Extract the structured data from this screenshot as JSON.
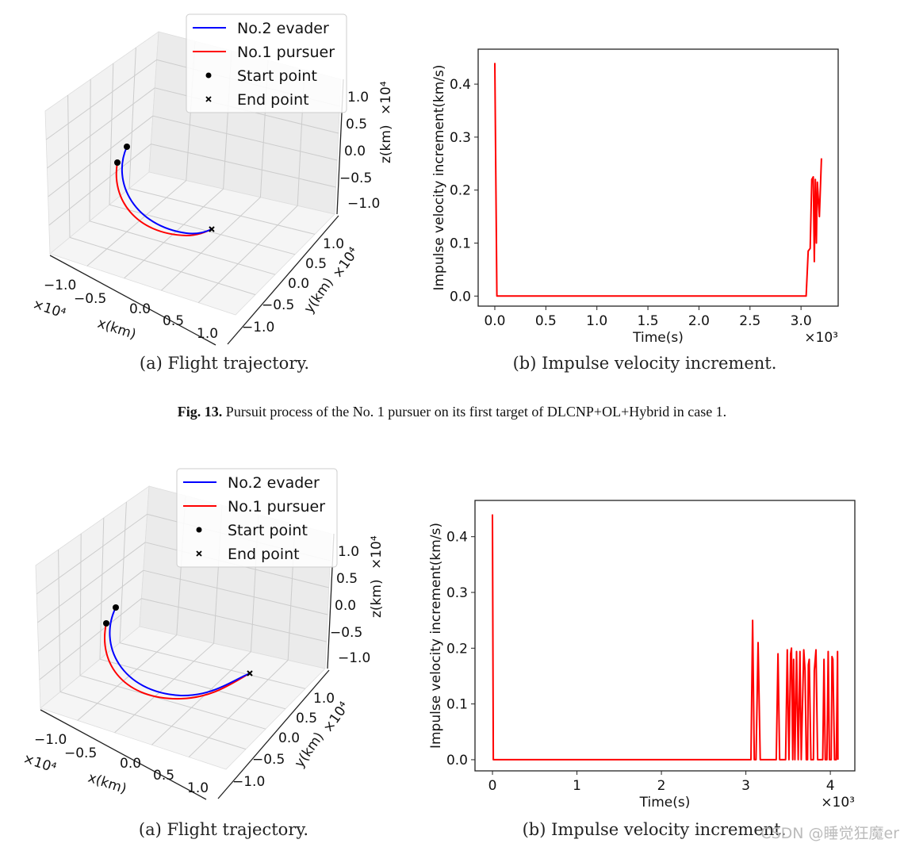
{
  "figure": {
    "top_caption_a": "(a) Flight trajectory.",
    "top_caption_b": "(b) Impulse velocity increment.",
    "fig_label": "Fig. 13.",
    "fig_text": "Pursuit process of the No. 1 pursuer on its first target of DLCNP+OL+Hybrid in case 1.",
    "bottom_caption_a": "(a) Flight trajectory.",
    "bottom_caption_b": "(b) Impulse velocity increment.",
    "watermark": "CSDN @睡觉狂魔er"
  },
  "chart_data": [
    {
      "type": "line3d",
      "legend": [
        "No.2 evader",
        "No.1 pursuer",
        "Start point",
        "End point"
      ],
      "legend_placement": "top-right",
      "colors": {
        "evader": "#0000ff",
        "pursuer": "#ff0000",
        "markers": "#000000"
      },
      "xlabel": "x(km)",
      "ylabel": "y(km)",
      "zlabel": "z(km)",
      "x_offset_label": "×10⁴",
      "y_offset_label": "×10⁴",
      "z_offset_label": "×10⁴",
      "xticks": [
        "−1.0",
        "−0.5",
        "0.0",
        "0.5",
        "1.0"
      ],
      "yticks": [
        "−1.0",
        "−0.5",
        "0.0",
        "0.5",
        "1.0"
      ],
      "zticks": [
        "−1.0",
        "−0.5",
        "0.0",
        "0.5",
        "1.0"
      ]
    },
    {
      "type": "line",
      "xlabel": "Time(s)",
      "ylabel": "Impulse velocity increment(km/s)",
      "x_offset_label": "×10³",
      "xlim": [
        -0.163,
        3.364
      ],
      "ylim": [
        -0.019,
        0.466
      ],
      "xticks": [
        0,
        0.5,
        1.0,
        1.5,
        2.0,
        2.5,
        3.0
      ],
      "xtick_labels": [
        "0.0",
        "0.5",
        "1.0",
        "1.5",
        "2.0",
        "2.5",
        "3.0"
      ],
      "yticks": [
        0,
        0.1,
        0.2,
        0.3,
        0.4
      ],
      "ytick_labels": [
        "0.0",
        "0.1",
        "0.2",
        "0.3",
        "0.4"
      ],
      "grid": false,
      "color": "#ff0000",
      "x": [
        0,
        0.02,
        3.05,
        3.07,
        3.09,
        3.105,
        3.12,
        3.13,
        3.14,
        3.15,
        3.16,
        3.18,
        3.2
      ],
      "y": [
        0.44,
        0,
        0,
        0.085,
        0.09,
        0.22,
        0.225,
        0.065,
        0.22,
        0.1,
        0.215,
        0.15,
        0.26
      ]
    },
    {
      "type": "line3d",
      "legend": [
        "No.2 evader",
        "No.1 pursuer",
        "Start point",
        "End point"
      ],
      "legend_placement": "top-right",
      "colors": {
        "evader": "#0000ff",
        "pursuer": "#ff0000",
        "markers": "#000000"
      },
      "xlabel": "x(km)",
      "ylabel": "y(km)",
      "zlabel": "z(km)",
      "x_offset_label": "×10⁴",
      "y_offset_label": "×10⁴",
      "z_offset_label": "×10⁴",
      "xticks": [
        "−1.0",
        "−0.5",
        "0.0",
        "0.5",
        "1.0"
      ],
      "yticks": [
        "−1.0",
        "−0.5",
        "0.0",
        "0.5",
        "1.0"
      ],
      "zticks": [
        "−1.0",
        "−0.5",
        "0.0",
        "0.5",
        "1.0"
      ]
    },
    {
      "type": "line",
      "xlabel": "Time(s)",
      "ylabel": "Impulse velocity increment(km/s)",
      "x_offset_label": "×10³",
      "xlim": [
        -0.207,
        4.29
      ],
      "ylim": [
        -0.02,
        0.465
      ],
      "xticks": [
        0,
        1,
        2,
        3,
        4
      ],
      "xtick_labels": [
        "0",
        "1",
        "2",
        "3",
        "4"
      ],
      "yticks": [
        0,
        0.1,
        0.2,
        0.3,
        0.4
      ],
      "ytick_labels": [
        "0.0",
        "0.1",
        "0.2",
        "0.3",
        "0.4"
      ],
      "grid": false,
      "color": "#ff0000",
      "x": [
        0,
        0.01,
        3.06,
        3.08,
        3.1,
        3.12,
        3.145,
        3.17,
        3.36,
        3.38,
        3.4,
        3.47,
        3.49,
        3.51,
        3.53,
        3.54,
        3.555,
        3.565,
        3.58,
        3.6,
        3.62,
        3.64,
        3.655,
        3.685,
        3.7,
        3.715,
        3.73,
        3.74,
        3.75,
        3.77,
        3.8,
        3.81,
        3.83,
        3.85,
        3.91,
        3.925,
        3.94,
        3.96,
        3.975,
        3.99,
        4.01,
        4.02,
        4.03,
        4.05,
        4.07,
        4.085,
        4.09
      ],
      "y": [
        0.44,
        0,
        0,
        0.25,
        0,
        0,
        0.21,
        0,
        0,
        0.19,
        0,
        0,
        0.197,
        0,
        0.19,
        0.2,
        0,
        0.18,
        0,
        0.194,
        0,
        0.194,
        0,
        0.197,
        0.16,
        0,
        0,
        0.17,
        0.18,
        0,
        0,
        0.16,
        0.197,
        0,
        0,
        0.18,
        0,
        0,
        0.194,
        0,
        0,
        0.185,
        0.18,
        0,
        0,
        0.194,
        0
      ]
    }
  ]
}
